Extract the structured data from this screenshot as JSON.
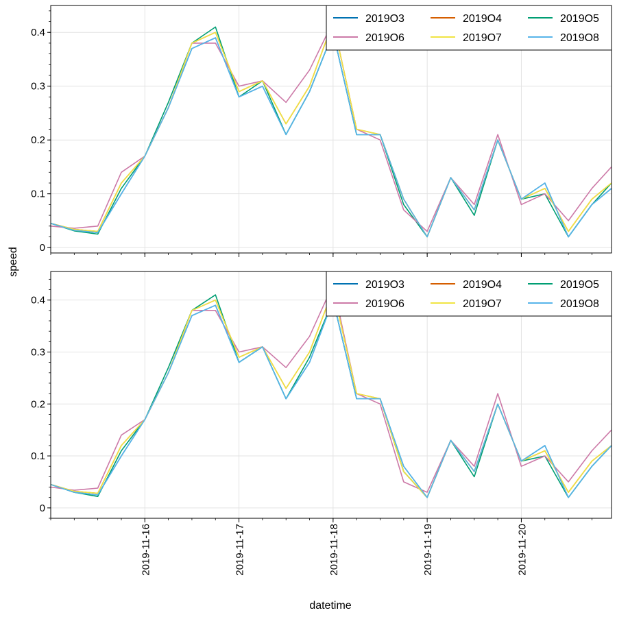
{
  "chart_data": {
    "type": "line",
    "ylabel": "speed",
    "xlabel": "datetime",
    "xlim": [
      "2019-11-15T00:00",
      "2019-11-20T23:00"
    ],
    "x_ticks": [
      "2019-11-16",
      "2019-11-17",
      "2019-11-18",
      "2019-11-19",
      "2019-11-20"
    ],
    "grid": true,
    "legend_placement": "top-right",
    "legend_columns": 3,
    "panels": [
      {
        "ylim": [
          -0.01,
          0.45
        ],
        "yticks": [
          "0",
          "0.1",
          "0.2",
          "0.3",
          "0.4"
        ],
        "x": [
          "2019-11-15T00:00",
          "2019-11-15T06:00",
          "2019-11-15T12:00",
          "2019-11-15T18:00",
          "2019-11-16T00:00",
          "2019-11-16T06:00",
          "2019-11-16T12:00",
          "2019-11-16T18:00",
          "2019-11-17T00:00",
          "2019-11-17T06:00",
          "2019-11-17T12:00",
          "2019-11-17T18:00",
          "2019-11-18T00:00",
          "2019-11-18T06:00",
          "2019-11-18T12:00",
          "2019-11-18T18:00",
          "2019-11-19T00:00",
          "2019-11-19T06:00",
          "2019-11-19T12:00",
          "2019-11-19T18:00",
          "2019-11-20T00:00",
          "2019-11-20T06:00",
          "2019-11-20T12:00",
          "2019-11-20T18:00",
          "2019-11-20T23:00"
        ],
        "series": [
          {
            "name": "2019O3",
            "color": "#0072b2",
            "values": [
              0.045,
              0.032,
              0.028,
              0.1,
              0.17,
              0.26,
              0.37,
              0.39,
              0.28,
              0.3,
              0.21,
              0.29,
              0.4,
              0.21,
              0.21,
              0.09,
              0.02,
              0.13,
              0.07,
              0.2,
              0.09,
              0.12,
              0.02,
              0.08,
              0.11
            ]
          },
          {
            "name": "2019O4",
            "color": "#d55e00",
            "values": [
              0.045,
              0.034,
              0.03,
              0.12,
              0.17,
              0.26,
              0.38,
              0.4,
              0.29,
              0.31,
              0.23,
              0.3,
              0.42,
              0.22,
              0.21,
              0.09,
              0.02,
              0.13,
              0.07,
              0.2,
              0.09,
              0.11,
              0.03,
              0.09,
              0.12
            ]
          },
          {
            "name": "2019O5",
            "color": "#009e73",
            "values": [
              0.045,
              0.031,
              0.025,
              0.11,
              0.17,
              0.27,
              0.38,
              0.41,
              0.28,
              0.31,
              0.21,
              0.29,
              0.4,
              0.21,
              0.21,
              0.08,
              0.02,
              0.13,
              0.06,
              0.2,
              0.09,
              0.1,
              0.02,
              0.08,
              0.12
            ]
          },
          {
            "name": "2019O6",
            "color": "#cc79a7",
            "values": [
              0.04,
              0.036,
              0.04,
              0.14,
              0.17,
              0.26,
              0.38,
              0.38,
              0.3,
              0.31,
              0.27,
              0.33,
              0.42,
              0.22,
              0.2,
              0.07,
              0.03,
              0.13,
              0.08,
              0.21,
              0.08,
              0.1,
              0.05,
              0.11,
              0.15
            ]
          },
          {
            "name": "2019O7",
            "color": "#f0e442",
            "values": [
              0.045,
              0.034,
              0.03,
              0.12,
              0.17,
              0.26,
              0.38,
              0.4,
              0.29,
              0.31,
              0.23,
              0.3,
              0.42,
              0.22,
              0.21,
              0.09,
              0.02,
              0.13,
              0.07,
              0.2,
              0.09,
              0.11,
              0.03,
              0.09,
              0.12
            ]
          },
          {
            "name": "2019O8",
            "color": "#56b4e9",
            "values": [
              0.045,
              0.032,
              0.028,
              0.1,
              0.17,
              0.26,
              0.37,
              0.39,
              0.28,
              0.3,
              0.21,
              0.29,
              0.4,
              0.21,
              0.21,
              0.09,
              0.02,
              0.13,
              0.07,
              0.2,
              0.09,
              0.12,
              0.02,
              0.08,
              0.11
            ]
          }
        ]
      },
      {
        "ylim": [
          -0.02,
          0.455
        ],
        "yticks": [
          "0",
          "0.1",
          "0.2",
          "0.3",
          "0.4"
        ],
        "x": [
          "2019-11-15T00:00",
          "2019-11-15T06:00",
          "2019-11-15T12:00",
          "2019-11-15T18:00",
          "2019-11-16T00:00",
          "2019-11-16T06:00",
          "2019-11-16T12:00",
          "2019-11-16T18:00",
          "2019-11-17T00:00",
          "2019-11-17T06:00",
          "2019-11-17T12:00",
          "2019-11-17T18:00",
          "2019-11-18T00:00",
          "2019-11-18T06:00",
          "2019-11-18T12:00",
          "2019-11-18T18:00",
          "2019-11-19T00:00",
          "2019-11-19T06:00",
          "2019-11-19T12:00",
          "2019-11-19T18:00",
          "2019-11-20T00:00",
          "2019-11-20T06:00",
          "2019-11-20T12:00",
          "2019-11-20T18:00",
          "2019-11-20T23:00"
        ],
        "series": [
          {
            "name": "2019O3",
            "color": "#0072b2",
            "values": [
              0.045,
              0.03,
              0.025,
              0.1,
              0.17,
              0.26,
              0.37,
              0.39,
              0.28,
              0.31,
              0.21,
              0.28,
              0.4,
              0.21,
              0.21,
              0.08,
              0.02,
              0.13,
              0.07,
              0.2,
              0.09,
              0.12,
              0.02,
              0.08,
              0.12
            ]
          },
          {
            "name": "2019O4",
            "color": "#d55e00",
            "values": [
              0.045,
              0.032,
              0.028,
              0.12,
              0.17,
              0.26,
              0.38,
              0.4,
              0.29,
              0.31,
              0.23,
              0.3,
              0.42,
              0.22,
              0.21,
              0.07,
              0.02,
              0.13,
              0.07,
              0.2,
              0.09,
              0.11,
              0.03,
              0.09,
              0.12
            ]
          },
          {
            "name": "2019O5",
            "color": "#009e73",
            "values": [
              0.045,
              0.03,
              0.022,
              0.11,
              0.17,
              0.27,
              0.38,
              0.41,
              0.28,
              0.31,
              0.21,
              0.29,
              0.4,
              0.21,
              0.21,
              0.07,
              0.02,
              0.13,
              0.06,
              0.2,
              0.09,
              0.1,
              0.02,
              0.08,
              0.12
            ]
          },
          {
            "name": "2019O6",
            "color": "#cc79a7",
            "values": [
              0.04,
              0.034,
              0.038,
              0.14,
              0.17,
              0.26,
              0.38,
              0.38,
              0.3,
              0.31,
              0.27,
              0.33,
              0.43,
              0.22,
              0.2,
              0.05,
              0.03,
              0.13,
              0.08,
              0.22,
              0.08,
              0.1,
              0.05,
              0.11,
              0.15
            ]
          },
          {
            "name": "2019O7",
            "color": "#f0e442",
            "values": [
              0.045,
              0.032,
              0.028,
              0.12,
              0.17,
              0.26,
              0.38,
              0.4,
              0.29,
              0.31,
              0.23,
              0.3,
              0.42,
              0.22,
              0.21,
              0.07,
              0.02,
              0.13,
              0.07,
              0.2,
              0.09,
              0.11,
              0.03,
              0.09,
              0.12
            ]
          },
          {
            "name": "2019O8",
            "color": "#56b4e9",
            "values": [
              0.045,
              0.03,
              0.025,
              0.1,
              0.17,
              0.26,
              0.37,
              0.39,
              0.28,
              0.31,
              0.21,
              0.28,
              0.4,
              0.21,
              0.21,
              0.08,
              0.02,
              0.13,
              0.07,
              0.2,
              0.09,
              0.12,
              0.02,
              0.08,
              0.12
            ]
          }
        ]
      }
    ]
  }
}
